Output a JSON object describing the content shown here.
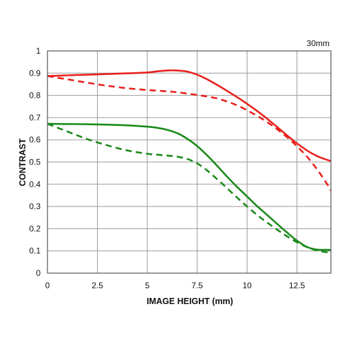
{
  "chart_data": {
    "type": "line",
    "annotation": "30mm",
    "xlabel": "IMAGE HEIGHT (mm)",
    "ylabel": "CONTRAST",
    "xlim": [
      0,
      14.2
    ],
    "ylim": [
      0,
      1
    ],
    "xticks": [
      0,
      2.5,
      5,
      7.5,
      10,
      12.5
    ],
    "xtick_labels": [
      "0",
      "2.5",
      "5",
      "7.5",
      "10",
      "12.5"
    ],
    "yticks": [
      0,
      0.1,
      0.2,
      0.3,
      0.4,
      0.5,
      0.6,
      0.7,
      0.8,
      0.9,
      1
    ],
    "ytick_labels": [
      "0",
      "0.1",
      "0.2",
      "0.3",
      "0.4",
      "0.5",
      "0.6",
      "0.7",
      "0.8",
      "0.9",
      "1"
    ],
    "grid": true,
    "series": [
      {
        "color": "#e8211d",
        "dash": "solid",
        "x": [
          0,
          1,
          2,
          3,
          4,
          5,
          5.5,
          6,
          6.5,
          7,
          7.5,
          8,
          8.5,
          9,
          9.5,
          10,
          10.5,
          11,
          11.5,
          12,
          12.5,
          13,
          13.5,
          14,
          14.2
        ],
        "y": [
          0.887,
          0.89,
          0.893,
          0.896,
          0.899,
          0.903,
          0.908,
          0.912,
          0.912,
          0.907,
          0.893,
          0.872,
          0.847,
          0.82,
          0.792,
          0.762,
          0.73,
          0.695,
          0.658,
          0.62,
          0.584,
          0.552,
          0.527,
          0.51,
          0.505
        ]
      },
      {
        "color": "#e8211d",
        "dash": "dashed",
        "x": [
          0,
          1,
          2,
          3,
          4,
          5,
          6,
          6.5,
          7,
          7.5,
          8,
          8.5,
          9,
          9.5,
          10,
          10.5,
          11,
          11.5,
          12,
          12.5,
          13,
          13.5,
          14,
          14.2
        ],
        "y": [
          0.887,
          0.872,
          0.857,
          0.843,
          0.832,
          0.824,
          0.818,
          0.814,
          0.808,
          0.802,
          0.795,
          0.786,
          0.772,
          0.755,
          0.733,
          0.708,
          0.68,
          0.648,
          0.612,
          0.571,
          0.524,
          0.468,
          0.402,
          0.372
        ]
      },
      {
        "color": "#1a8a1a",
        "dash": "solid",
        "x": [
          0,
          1,
          2,
          3,
          4,
          5,
          5.5,
          6,
          6.5,
          7,
          7.5,
          8,
          8.5,
          9,
          9.5,
          10,
          10.5,
          11,
          11.5,
          12,
          12.5,
          13,
          13.5,
          14,
          14.2
        ],
        "y": [
          0.672,
          0.671,
          0.67,
          0.668,
          0.665,
          0.659,
          0.654,
          0.645,
          0.63,
          0.605,
          0.572,
          0.53,
          0.483,
          0.434,
          0.388,
          0.345,
          0.302,
          0.262,
          0.222,
          0.183,
          0.146,
          0.118,
          0.106,
          0.105,
          0.104
        ]
      },
      {
        "color": "#1a8a1a",
        "dash": "dashed",
        "x": [
          0,
          1,
          2,
          3,
          4,
          5,
          5.5,
          6,
          6.5,
          7,
          7.5,
          8,
          8.5,
          9,
          9.5,
          10,
          10.5,
          11,
          11.5,
          12,
          12.5,
          13,
          13.5,
          14,
          14.2
        ],
        "y": [
          0.672,
          0.637,
          0.603,
          0.575,
          0.552,
          0.537,
          0.533,
          0.529,
          0.524,
          0.514,
          0.494,
          0.462,
          0.423,
          0.382,
          0.34,
          0.3,
          0.262,
          0.228,
          0.196,
          0.166,
          0.139,
          0.117,
          0.102,
          0.094,
          0.092
        ]
      }
    ]
  }
}
